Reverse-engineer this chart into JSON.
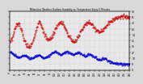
{
  "title": "Milwaukee Weather Outdoor Humidity vs. Temperature Every 5 Minutes",
  "red_color": "#cc0000",
  "blue_color": "#0000cc",
  "background_color": "#d8d8d8",
  "plot_bg_color": "#e8e8e8",
  "grid_color": "#bbbbbb",
  "ylim": [
    0,
    90
  ],
  "xlim_max": 288,
  "y_ticks": [
    0,
    9,
    18,
    27,
    36,
    45,
    54,
    63,
    72,
    81,
    90
  ],
  "temp_points": [
    42,
    44,
    47,
    52,
    58,
    63,
    67,
    70,
    72,
    71,
    68,
    63,
    57,
    52,
    47,
    43,
    40,
    38,
    37,
    36,
    37,
    39,
    42,
    46,
    51,
    57,
    63,
    68,
    72,
    74,
    73,
    70,
    66,
    61,
    56,
    52,
    49,
    47,
    46,
    46,
    47,
    49,
    52,
    55,
    58,
    61,
    64,
    67,
    70,
    72,
    73,
    73,
    72,
    70,
    67,
    64,
    61,
    57,
    54,
    51,
    48,
    46,
    45,
    44,
    44,
    45,
    47,
    49,
    52,
    55,
    58,
    61,
    64,
    67,
    70,
    72,
    73,
    74,
    74,
    73,
    72,
    70,
    68,
    66,
    64,
    62,
    61,
    60,
    59,
    59,
    59,
    60,
    61,
    63,
    65,
    67,
    69,
    71,
    73,
    74,
    75,
    76,
    77,
    78,
    79,
    80,
    81,
    82,
    82,
    82,
    83,
    83,
    83,
    83,
    82,
    82,
    81,
    81,
    80,
    80
  ],
  "hum_points": [
    28,
    27,
    26,
    25,
    24,
    23,
    22,
    21,
    20,
    20,
    20,
    21,
    22,
    23,
    23,
    23,
    22,
    21,
    20,
    19,
    18,
    18,
    18,
    19,
    20,
    21,
    22,
    23,
    23,
    23,
    22,
    21,
    20,
    19,
    19,
    19,
    20,
    21,
    22,
    23,
    24,
    25,
    26,
    27,
    28,
    28,
    28,
    27,
    26,
    25,
    24,
    24,
    24,
    25,
    26,
    27,
    28,
    28,
    28,
    27,
    26,
    25,
    24,
    24,
    24,
    25,
    26,
    27,
    27,
    27,
    26,
    25,
    24,
    23,
    22,
    22,
    22,
    23,
    24,
    24,
    24,
    23,
    22,
    21,
    20,
    19,
    18,
    17,
    16,
    16,
    16,
    17,
    18,
    18,
    18,
    17,
    16,
    15,
    14,
    13,
    13,
    12,
    12,
    11,
    11,
    11,
    10,
    10,
    10,
    10,
    10,
    9,
    9,
    9,
    9,
    9,
    9,
    9,
    9,
    9
  ]
}
